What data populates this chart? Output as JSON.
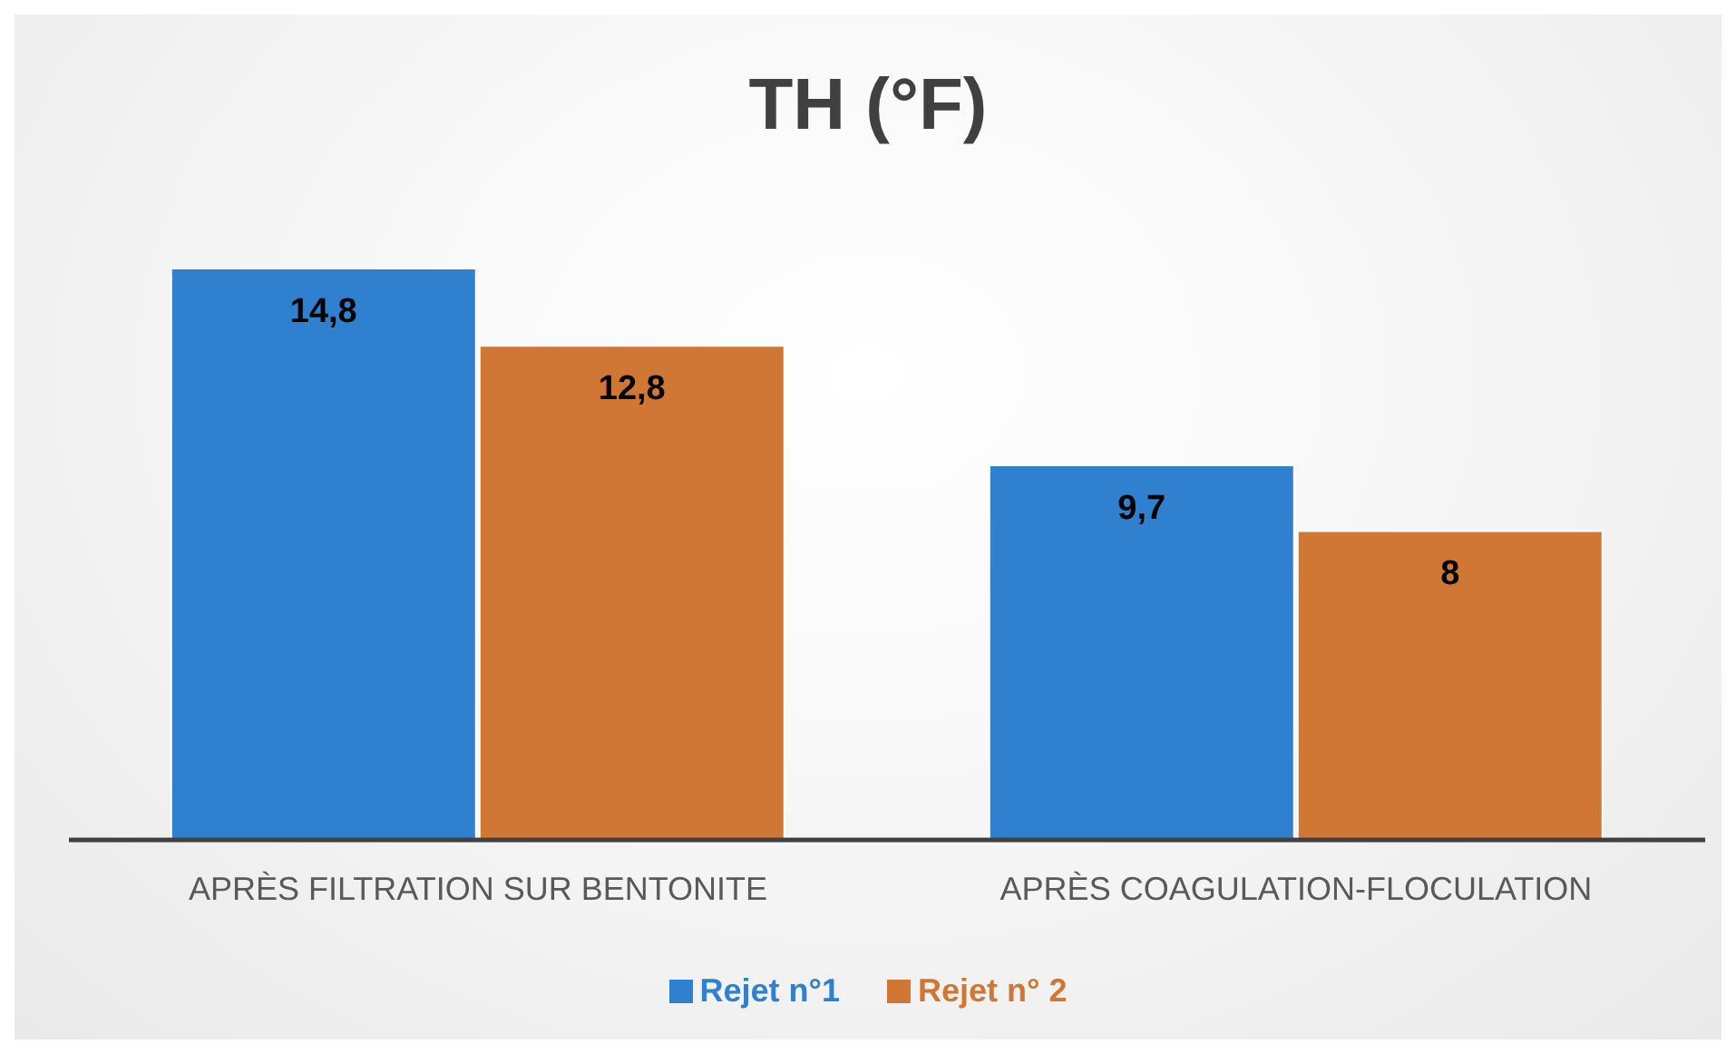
{
  "chart_data": {
    "type": "bar",
    "title": "TH (°F)",
    "categories": [
      "APRÈS FILTRATION SUR BENTONITE",
      "APRÈS COAGULATION-FLOCULATION"
    ],
    "series": [
      {
        "name": "Rejet n°1",
        "color": "#2f80cf",
        "values": [
          14.8,
          9.7
        ],
        "value_labels": [
          "14,8",
          "9,7"
        ]
      },
      {
        "name": "Rejet n° 2",
        "color": "#d07735",
        "values": [
          12.8,
          8
        ],
        "value_labels": [
          "12,8",
          "8"
        ]
      }
    ],
    "legend": "bottom",
    "tick_labels": "x"
  }
}
